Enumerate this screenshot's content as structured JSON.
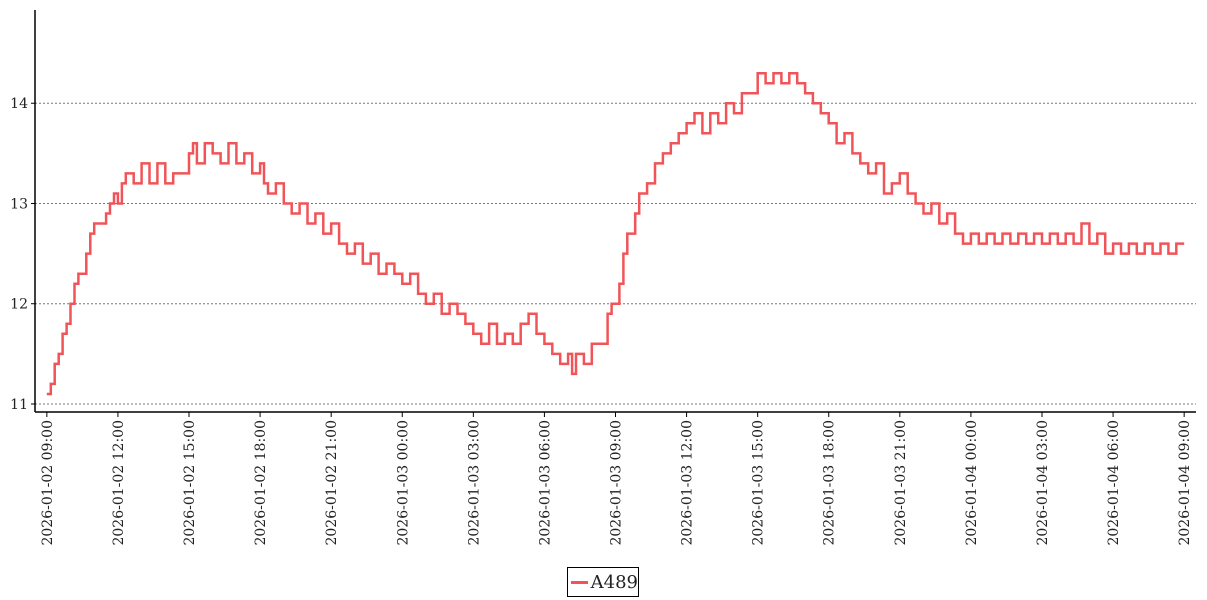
{
  "chart_data": {
    "type": "line",
    "x_axis": {
      "kind": "datetime",
      "range": [
        "2026-01-02 08:30",
        "2026-01-04 09:30"
      ],
      "tick_labels": [
        "2026-01-02 09:00",
        "2026-01-02 12:00",
        "2026-01-02 15:00",
        "2026-01-02 18:00",
        "2026-01-02 21:00",
        "2026-01-03 00:00",
        "2026-01-03 03:00",
        "2026-01-03 06:00",
        "2026-01-03 09:00",
        "2026-01-03 12:00",
        "2026-01-03 15:00",
        "2026-01-03 18:00",
        "2026-01-03 21:00",
        "2026-01-04 00:00",
        "2026-01-04 03:00",
        "2026-01-04 06:00",
        "2026-01-04 09:00"
      ],
      "tick_label_rotation": "vertical"
    },
    "y_axis": {
      "range": [
        10.92,
        14.93
      ],
      "ticks": [
        11,
        12,
        13,
        14
      ],
      "grid": "horizontal dotted"
    },
    "legend": {
      "placement": "bottom-center"
    },
    "series": [
      {
        "name": "A489",
        "color": "#f05458",
        "style": "step",
        "points": [
          [
            "2026-01-02 09:00",
            11.1
          ],
          [
            "2026-01-02 09:10",
            11.2
          ],
          [
            "2026-01-02 09:20",
            11.4
          ],
          [
            "2026-01-02 09:30",
            11.5
          ],
          [
            "2026-01-02 09:40",
            11.7
          ],
          [
            "2026-01-02 09:50",
            11.8
          ],
          [
            "2026-01-02 10:00",
            12.0
          ],
          [
            "2026-01-02 10:10",
            12.2
          ],
          [
            "2026-01-02 10:20",
            12.3
          ],
          [
            "2026-01-02 10:40",
            12.5
          ],
          [
            "2026-01-02 10:50",
            12.7
          ],
          [
            "2026-01-02 11:00",
            12.8
          ],
          [
            "2026-01-02 11:30",
            12.9
          ],
          [
            "2026-01-02 11:40",
            13.0
          ],
          [
            "2026-01-02 11:50",
            13.1
          ],
          [
            "2026-01-02 12:00",
            13.0
          ],
          [
            "2026-01-02 12:10",
            13.2
          ],
          [
            "2026-01-02 12:20",
            13.3
          ],
          [
            "2026-01-02 12:40",
            13.2
          ],
          [
            "2026-01-02 13:00",
            13.4
          ],
          [
            "2026-01-02 13:20",
            13.2
          ],
          [
            "2026-01-02 13:40",
            13.4
          ],
          [
            "2026-01-02 14:00",
            13.2
          ],
          [
            "2026-01-02 14:20",
            13.3
          ],
          [
            "2026-01-02 14:40",
            13.3
          ],
          [
            "2026-01-02 15:00",
            13.5
          ],
          [
            "2026-01-02 15:10",
            13.6
          ],
          [
            "2026-01-02 15:20",
            13.4
          ],
          [
            "2026-01-02 15:40",
            13.6
          ],
          [
            "2026-01-02 16:00",
            13.5
          ],
          [
            "2026-01-02 16:20",
            13.4
          ],
          [
            "2026-01-02 16:40",
            13.6
          ],
          [
            "2026-01-02 17:00",
            13.4
          ],
          [
            "2026-01-02 17:20",
            13.5
          ],
          [
            "2026-01-02 17:40",
            13.3
          ],
          [
            "2026-01-02 18:00",
            13.4
          ],
          [
            "2026-01-02 18:10",
            13.2
          ],
          [
            "2026-01-02 18:20",
            13.1
          ],
          [
            "2026-01-02 18:40",
            13.2
          ],
          [
            "2026-01-02 19:00",
            13.0
          ],
          [
            "2026-01-02 19:20",
            12.9
          ],
          [
            "2026-01-02 19:40",
            13.0
          ],
          [
            "2026-01-02 20:00",
            12.8
          ],
          [
            "2026-01-02 20:20",
            12.9
          ],
          [
            "2026-01-02 20:40",
            12.7
          ],
          [
            "2026-01-02 21:00",
            12.8
          ],
          [
            "2026-01-02 21:20",
            12.6
          ],
          [
            "2026-01-02 21:40",
            12.5
          ],
          [
            "2026-01-02 22:00",
            12.6
          ],
          [
            "2026-01-02 22:20",
            12.4
          ],
          [
            "2026-01-02 22:40",
            12.5
          ],
          [
            "2026-01-02 23:00",
            12.3
          ],
          [
            "2026-01-02 23:20",
            12.4
          ],
          [
            "2026-01-02 23:40",
            12.3
          ],
          [
            "2026-01-03 00:00",
            12.2
          ],
          [
            "2026-01-03 00:20",
            12.3
          ],
          [
            "2026-01-03 00:40",
            12.1
          ],
          [
            "2026-01-03 01:00",
            12.0
          ],
          [
            "2026-01-03 01:20",
            12.1
          ],
          [
            "2026-01-03 01:40",
            11.9
          ],
          [
            "2026-01-03 02:00",
            12.0
          ],
          [
            "2026-01-03 02:20",
            11.9
          ],
          [
            "2026-01-03 02:40",
            11.8
          ],
          [
            "2026-01-03 03:00",
            11.7
          ],
          [
            "2026-01-03 03:20",
            11.6
          ],
          [
            "2026-01-03 03:40",
            11.8
          ],
          [
            "2026-01-03 04:00",
            11.6
          ],
          [
            "2026-01-03 04:20",
            11.7
          ],
          [
            "2026-01-03 04:40",
            11.6
          ],
          [
            "2026-01-03 05:00",
            11.8
          ],
          [
            "2026-01-03 05:20",
            11.9
          ],
          [
            "2026-01-03 05:40",
            11.7
          ],
          [
            "2026-01-03 06:00",
            11.6
          ],
          [
            "2026-01-03 06:20",
            11.5
          ],
          [
            "2026-01-03 06:40",
            11.4
          ],
          [
            "2026-01-03 07:00",
            11.5
          ],
          [
            "2026-01-03 07:10",
            11.3
          ],
          [
            "2026-01-03 07:20",
            11.5
          ],
          [
            "2026-01-03 07:40",
            11.4
          ],
          [
            "2026-01-03 08:00",
            11.6
          ],
          [
            "2026-01-03 08:20",
            11.6
          ],
          [
            "2026-01-03 08:40",
            11.9
          ],
          [
            "2026-01-03 08:50",
            12.0
          ],
          [
            "2026-01-03 09:10",
            12.2
          ],
          [
            "2026-01-03 09:20",
            12.5
          ],
          [
            "2026-01-03 09:30",
            12.7
          ],
          [
            "2026-01-03 09:50",
            12.9
          ],
          [
            "2026-01-03 10:00",
            13.1
          ],
          [
            "2026-01-03 10:20",
            13.2
          ],
          [
            "2026-01-03 10:40",
            13.4
          ],
          [
            "2026-01-03 11:00",
            13.5
          ],
          [
            "2026-01-03 11:20",
            13.6
          ],
          [
            "2026-01-03 11:40",
            13.7
          ],
          [
            "2026-01-03 12:00",
            13.8
          ],
          [
            "2026-01-03 12:20",
            13.9
          ],
          [
            "2026-01-03 12:40",
            13.7
          ],
          [
            "2026-01-03 13:00",
            13.9
          ],
          [
            "2026-01-03 13:20",
            13.8
          ],
          [
            "2026-01-03 13:40",
            14.0
          ],
          [
            "2026-01-03 14:00",
            13.9
          ],
          [
            "2026-01-03 14:20",
            14.1
          ],
          [
            "2026-01-03 14:40",
            14.1
          ],
          [
            "2026-01-03 15:00",
            14.3
          ],
          [
            "2026-01-03 15:20",
            14.2
          ],
          [
            "2026-01-03 15:40",
            14.3
          ],
          [
            "2026-01-03 16:00",
            14.2
          ],
          [
            "2026-01-03 16:20",
            14.3
          ],
          [
            "2026-01-03 16:40",
            14.2
          ],
          [
            "2026-01-03 17:00",
            14.1
          ],
          [
            "2026-01-03 17:20",
            14.0
          ],
          [
            "2026-01-03 17:40",
            13.9
          ],
          [
            "2026-01-03 18:00",
            13.8
          ],
          [
            "2026-01-03 18:20",
            13.6
          ],
          [
            "2026-01-03 18:40",
            13.7
          ],
          [
            "2026-01-03 19:00",
            13.5
          ],
          [
            "2026-01-03 19:20",
            13.4
          ],
          [
            "2026-01-03 19:40",
            13.3
          ],
          [
            "2026-01-03 20:00",
            13.4
          ],
          [
            "2026-01-03 20:20",
            13.1
          ],
          [
            "2026-01-03 20:40",
            13.2
          ],
          [
            "2026-01-03 21:00",
            13.3
          ],
          [
            "2026-01-03 21:20",
            13.1
          ],
          [
            "2026-01-03 21:40",
            13.0
          ],
          [
            "2026-01-03 22:00",
            12.9
          ],
          [
            "2026-01-03 22:20",
            13.0
          ],
          [
            "2026-01-03 22:40",
            12.8
          ],
          [
            "2026-01-03 23:00",
            12.9
          ],
          [
            "2026-01-03 23:20",
            12.7
          ],
          [
            "2026-01-03 23:40",
            12.6
          ],
          [
            "2026-01-04 00:00",
            12.7
          ],
          [
            "2026-01-04 00:20",
            12.6
          ],
          [
            "2026-01-04 00:40",
            12.7
          ],
          [
            "2026-01-04 01:00",
            12.6
          ],
          [
            "2026-01-04 01:20",
            12.7
          ],
          [
            "2026-01-04 01:40",
            12.6
          ],
          [
            "2026-01-04 02:00",
            12.7
          ],
          [
            "2026-01-04 02:20",
            12.6
          ],
          [
            "2026-01-04 02:40",
            12.7
          ],
          [
            "2026-01-04 03:00",
            12.6
          ],
          [
            "2026-01-04 03:20",
            12.7
          ],
          [
            "2026-01-04 03:40",
            12.6
          ],
          [
            "2026-01-04 04:00",
            12.7
          ],
          [
            "2026-01-04 04:20",
            12.6
          ],
          [
            "2026-01-04 04:40",
            12.8
          ],
          [
            "2026-01-04 05:00",
            12.6
          ],
          [
            "2026-01-04 05:20",
            12.7
          ],
          [
            "2026-01-04 05:40",
            12.5
          ],
          [
            "2026-01-04 06:00",
            12.6
          ],
          [
            "2026-01-04 06:20",
            12.5
          ],
          [
            "2026-01-04 06:40",
            12.6
          ],
          [
            "2026-01-04 07:00",
            12.5
          ],
          [
            "2026-01-04 07:20",
            12.6
          ],
          [
            "2026-01-04 07:40",
            12.5
          ],
          [
            "2026-01-04 08:00",
            12.6
          ],
          [
            "2026-01-04 08:20",
            12.5
          ],
          [
            "2026-01-04 08:40",
            12.6
          ],
          [
            "2026-01-04 09:00",
            12.6
          ]
        ]
      }
    ]
  }
}
